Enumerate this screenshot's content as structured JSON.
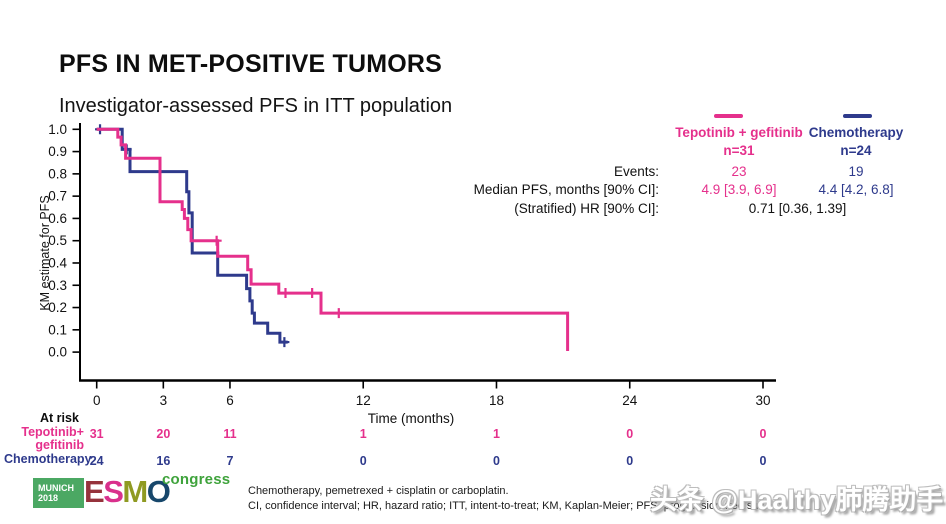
{
  "header": {
    "title": "PFS IN MET-POSITIVE TUMORS",
    "subtitle": "Investigator-assessed PFS in ITT population"
  },
  "colors": {
    "tepotinib_pink": "#E5308C",
    "chemo_navy": "#2E3A8C",
    "axis_black": "#000000"
  },
  "stats": {
    "row_labels": [
      "Events:",
      "Median PFS, months [90% CI]:",
      "(Stratified) HR [90% CI]:"
    ],
    "arms": [
      {
        "name": "Tepotinib + gefitinib",
        "n_label": "n=31",
        "events": "23",
        "median": "4.9 [3.9, 6.9]",
        "color": "#E5308C"
      },
      {
        "name": "Chemotherapy",
        "n_label": "n=24",
        "events": "19",
        "median": "4.4 [4.2, 6.8]",
        "color": "#2E3A8C"
      }
    ],
    "hr_value": "0.71 [0.36, 1.39]"
  },
  "chart_data": {
    "type": "line",
    "subtype": "kaplan-meier-step",
    "title": "",
    "xlabel": "Time (months)",
    "ylabel": "KM estimate for PFS",
    "xlim": [
      0,
      30
    ],
    "ylim": [
      0.0,
      1.0
    ],
    "grid": false,
    "xticks": [
      0,
      3,
      6,
      12,
      18,
      24,
      30
    ],
    "ytick_labels": [
      "0.0",
      "0.1",
      "0.2",
      "0.3",
      "0.4",
      "0.5",
      "0.6",
      "0.7",
      "0.8",
      "0.9",
      "1.0"
    ],
    "censor_marker": "+",
    "series": [
      {
        "name": "Chemotherapy",
        "color": "#2E3A8C",
        "steps": [
          [
            0,
            1.0
          ],
          [
            1.15,
            1.0
          ],
          [
            1.15,
            0.91
          ],
          [
            1.5,
            0.91
          ],
          [
            1.5,
            0.81
          ],
          [
            4.05,
            0.81
          ],
          [
            4.05,
            0.72
          ],
          [
            4.15,
            0.72
          ],
          [
            4.15,
            0.625
          ],
          [
            4.3,
            0.625
          ],
          [
            4.3,
            0.445
          ],
          [
            5.45,
            0.445
          ],
          [
            5.45,
            0.345
          ],
          [
            6.75,
            0.345
          ],
          [
            6.75,
            0.285
          ],
          [
            6.9,
            0.285
          ],
          [
            6.9,
            0.23
          ],
          [
            7.0,
            0.23
          ],
          [
            7.0,
            0.175
          ],
          [
            7.1,
            0.175
          ],
          [
            7.1,
            0.13
          ],
          [
            7.7,
            0.13
          ],
          [
            7.7,
            0.085
          ],
          [
            8.25,
            0.085
          ],
          [
            8.25,
            0.045
          ],
          [
            8.6,
            0.045
          ]
        ],
        "censors": [
          [
            0.15,
            1.0
          ],
          [
            1.35,
            0.91
          ],
          [
            8.45,
            0.045
          ]
        ]
      },
      {
        "name": "Tepotinib + gefitinib",
        "color": "#E5308C",
        "steps": [
          [
            0,
            1.0
          ],
          [
            0.95,
            1.0
          ],
          [
            0.95,
            0.965
          ],
          [
            1.1,
            0.965
          ],
          [
            1.1,
            0.93
          ],
          [
            1.3,
            0.93
          ],
          [
            1.3,
            0.87
          ],
          [
            2.85,
            0.87
          ],
          [
            2.85,
            0.675
          ],
          [
            3.85,
            0.675
          ],
          [
            3.85,
            0.64
          ],
          [
            3.95,
            0.64
          ],
          [
            3.95,
            0.6
          ],
          [
            4.1,
            0.6
          ],
          [
            4.1,
            0.55
          ],
          [
            4.25,
            0.55
          ],
          [
            4.25,
            0.5
          ],
          [
            5.45,
            0.5
          ],
          [
            5.45,
            0.43
          ],
          [
            6.8,
            0.43
          ],
          [
            6.8,
            0.37
          ],
          [
            6.95,
            0.37
          ],
          [
            6.95,
            0.305
          ],
          [
            8.2,
            0.305
          ],
          [
            8.2,
            0.265
          ],
          [
            10.1,
            0.265
          ],
          [
            10.1,
            0.175
          ],
          [
            21.2,
            0.175
          ],
          [
            21.2,
            0.005
          ]
        ],
        "censors": [
          [
            5.4,
            0.5
          ],
          [
            8.5,
            0.265
          ],
          [
            9.7,
            0.265
          ],
          [
            10.9,
            0.175
          ]
        ]
      }
    ]
  },
  "at_risk": {
    "label": "At risk",
    "time_axis_label": "Time (months)",
    "rows": [
      {
        "name_lines": [
          "Tepotinib+",
          "gefitinib"
        ],
        "color": "#E5308C",
        "values": [
          31,
          20,
          11,
          1,
          1,
          0,
          0
        ]
      },
      {
        "name_lines": [
          "Chemotherapy"
        ],
        "color": "#2E3A8C",
        "values": [
          24,
          16,
          7,
          0,
          0,
          0,
          0
        ]
      }
    ]
  },
  "footer": {
    "notes": [
      "Chemotherapy, pemetrexed + cisplatin or carboplatin.",
      "CI, confidence interval; HR, hazard ratio; ITT, intent-to-treat; KM, Kaplan-Meier; PFS, progression-free survival."
    ],
    "logo": {
      "city": "MUNICH",
      "year": "2018",
      "letters": [
        {
          "ch": "E",
          "color": "#96333C"
        },
        {
          "ch": "S",
          "color": "#D9308C"
        },
        {
          "ch": "M",
          "color": "#8F9A22"
        },
        {
          "ch": "O",
          "color": "#17476B"
        }
      ],
      "congress": "congress"
    },
    "watermark": "头条 @Haalthy肺腾助手"
  }
}
